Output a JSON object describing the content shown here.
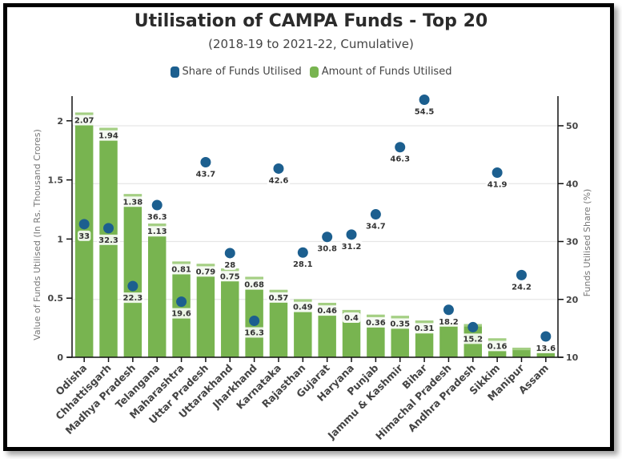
{
  "colors": {
    "bar": "#78b450",
    "bar_top": "#a4cf83",
    "dot": "#1c5f8f",
    "grid": "#e6e6e6",
    "axis": "#111111"
  },
  "chart_data": {
    "type": "bar",
    "title": "Utilisation of CAMPA Funds - Top 20",
    "subtitle": "(2018-19 to 2021-22, Cumulative)",
    "legend_position": "top-center",
    "legend": [
      {
        "name": "Share of Funds Utilised",
        "color": "#1c5f8f"
      },
      {
        "name": "Amount of Funds Utilised",
        "color": "#78b450"
      }
    ],
    "categories": [
      "Odisha",
      "Chhattisgarh",
      "Madhya Pradesh",
      "Telangana",
      "Maharashtra",
      "Uttar Pradesh",
      "Uttarakhand",
      "Jharkhand",
      "Karnataka",
      "Rajasthan",
      "Gujarat",
      "Haryana",
      "Punjab",
      "Jammu & Kashmir",
      "Bihar",
      "Himachal Pradesh",
      "Andhra Pradesh",
      "Sikkim",
      "Manipur",
      "Assam"
    ],
    "series": [
      {
        "name": "Amount of Funds Utilised",
        "type": "bar",
        "axis": "left",
        "values": [
          2.07,
          1.94,
          1.38,
          1.13,
          0.81,
          0.79,
          0.75,
          0.68,
          0.57,
          0.49,
          0.46,
          0.4,
          0.36,
          0.35,
          0.31,
          0.28,
          0.28,
          0.16,
          0.08,
          0.06
        ],
        "labels": [
          "2.07",
          "1.94",
          "1.38",
          "1.13",
          "0.81",
          "0.79",
          "0.75",
          "0.68",
          "0.57",
          "0.49",
          "0.46",
          "0.4",
          "0.36",
          "0.35",
          "0.31",
          "",
          "",
          "0.16",
          "",
          ""
        ]
      },
      {
        "name": "Share of Funds Utilised",
        "type": "scatter",
        "axis": "right",
        "values": [
          33,
          32.3,
          22.3,
          36.3,
          19.6,
          43.7,
          28,
          16.3,
          42.6,
          28.1,
          30.8,
          31.2,
          34.7,
          46.3,
          54.5,
          18.2,
          15.2,
          41.9,
          24.2,
          13.6
        ]
      }
    ],
    "ylabel": "Value of Funds Utilised (In Rs. Thousand Crores)",
    "ylim": [
      0,
      2.2
    ],
    "yticks": [
      0,
      0.5,
      1,
      1.5,
      2
    ],
    "ytick_labels": [
      "0",
      "0.5",
      "1",
      "1.5",
      "2"
    ],
    "y2label": "Funds Utilised Share (%)",
    "y2lim": [
      10,
      55
    ],
    "y2ticks": [
      10,
      20,
      30,
      40,
      50
    ],
    "y2tick_labels": [
      "10",
      "20",
      "30",
      "40",
      "50"
    ],
    "grid": true
  }
}
